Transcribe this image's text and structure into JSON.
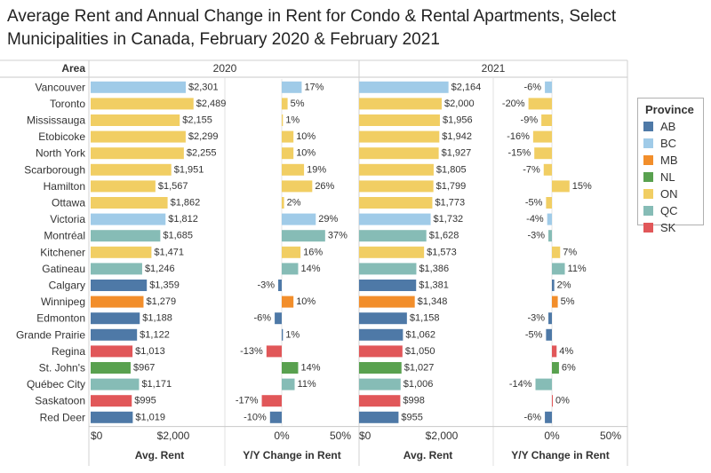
{
  "chart_data": {
    "type": "bar",
    "title": "Average Rent and Annual Change in Rent for Condo & Rental Apartments, Select Municipalities in Canada, February 2020 & February 2021",
    "row_header": "Area",
    "years": [
      "2020",
      "2021"
    ],
    "measures": [
      "Avg. Rent",
      "Y/Y Change in Rent"
    ],
    "rent_axis": {
      "range": [
        0,
        2600
      ],
      "ticks": [
        0,
        2000
      ],
      "tick_labels": [
        "$0",
        "$2,000"
      ]
    },
    "change_axis": {
      "range": [
        -30,
        50
      ],
      "ticks": [
        0,
        50
      ],
      "tick_labels": [
        "0%",
        "50%"
      ]
    },
    "legend": {
      "title": "Province",
      "items": [
        {
          "code": "AB",
          "color": "#4e79a7"
        },
        {
          "code": "BC",
          "color": "#a0cbe8"
        },
        {
          "code": "MB",
          "color": "#f28e2b"
        },
        {
          "code": "NL",
          "color": "#59a14f"
        },
        {
          "code": "ON",
          "color": "#f1ce63"
        },
        {
          "code": "QC",
          "color": "#86bcb6"
        },
        {
          "code": "SK",
          "color": "#e15759"
        }
      ]
    },
    "rows": [
      {
        "area": "Vancouver",
        "province": "BC",
        "rent_2020": 2301,
        "rent_2020_label": "$2,301",
        "change_2020": 17,
        "change_2020_label": "17%",
        "rent_2021": 2164,
        "rent_2021_label": "$2,164",
        "change_2021": -6,
        "change_2021_label": "-6%"
      },
      {
        "area": "Toronto",
        "province": "ON",
        "rent_2020": 2489,
        "rent_2020_label": "$2,489",
        "change_2020": 5,
        "change_2020_label": "5%",
        "rent_2021": 2000,
        "rent_2021_label": "$2,000",
        "change_2021": -20,
        "change_2021_label": "-20%"
      },
      {
        "area": "Mississauga",
        "province": "ON",
        "rent_2020": 2155,
        "rent_2020_label": "$2,155",
        "change_2020": 1,
        "change_2020_label": "1%",
        "rent_2021": 1956,
        "rent_2021_label": "$1,956",
        "change_2021": -9,
        "change_2021_label": "-9%"
      },
      {
        "area": "Etobicoke",
        "province": "ON",
        "rent_2020": 2299,
        "rent_2020_label": "$2,299",
        "change_2020": 10,
        "change_2020_label": "10%",
        "rent_2021": 1942,
        "rent_2021_label": "$1,942",
        "change_2021": -16,
        "change_2021_label": "-16%"
      },
      {
        "area": "North York",
        "province": "ON",
        "rent_2020": 2255,
        "rent_2020_label": "$2,255",
        "change_2020": 10,
        "change_2020_label": "10%",
        "rent_2021": 1927,
        "rent_2021_label": "$1,927",
        "change_2021": -15,
        "change_2021_label": "-15%"
      },
      {
        "area": "Scarborough",
        "province": "ON",
        "rent_2020": 1951,
        "rent_2020_label": "$1,951",
        "change_2020": 19,
        "change_2020_label": "19%",
        "rent_2021": 1805,
        "rent_2021_label": "$1,805",
        "change_2021": -7,
        "change_2021_label": "-7%"
      },
      {
        "area": "Hamilton",
        "province": "ON",
        "rent_2020": 1567,
        "rent_2020_label": "$1,567",
        "change_2020": 26,
        "change_2020_label": "26%",
        "rent_2021": 1799,
        "rent_2021_label": "$1,799",
        "change_2021": 15,
        "change_2021_label": "15%"
      },
      {
        "area": "Ottawa",
        "province": "ON",
        "rent_2020": 1862,
        "rent_2020_label": "$1,862",
        "change_2020": 2,
        "change_2020_label": "2%",
        "rent_2021": 1773,
        "rent_2021_label": "$1,773",
        "change_2021": -5,
        "change_2021_label": "-5%"
      },
      {
        "area": "Victoria",
        "province": "BC",
        "rent_2020": 1812,
        "rent_2020_label": "$1,812",
        "change_2020": 29,
        "change_2020_label": "29%",
        "rent_2021": 1732,
        "rent_2021_label": "$1,732",
        "change_2021": -4,
        "change_2021_label": "-4%"
      },
      {
        "area": "Montréal",
        "province": "QC",
        "rent_2020": 1685,
        "rent_2020_label": "$1,685",
        "change_2020": 37,
        "change_2020_label": "37%",
        "rent_2021": 1628,
        "rent_2021_label": "$1,628",
        "change_2021": -3,
        "change_2021_label": "-3%"
      },
      {
        "area": "Kitchener",
        "province": "ON",
        "rent_2020": 1471,
        "rent_2020_label": "$1,471",
        "change_2020": 16,
        "change_2020_label": "16%",
        "rent_2021": 1573,
        "rent_2021_label": "$1,573",
        "change_2021": 7,
        "change_2021_label": "7%"
      },
      {
        "area": "Gatineau",
        "province": "QC",
        "rent_2020": 1246,
        "rent_2020_label": "$1,246",
        "change_2020": 14,
        "change_2020_label": "14%",
        "rent_2021": 1386,
        "rent_2021_label": "$1,386",
        "change_2021": 11,
        "change_2021_label": "11%"
      },
      {
        "area": "Calgary",
        "province": "AB",
        "rent_2020": 1359,
        "rent_2020_label": "$1,359",
        "change_2020": -3,
        "change_2020_label": "-3%",
        "rent_2021": 1381,
        "rent_2021_label": "$1,381",
        "change_2021": 2,
        "change_2021_label": "2%"
      },
      {
        "area": "Winnipeg",
        "province": "MB",
        "rent_2020": 1279,
        "rent_2020_label": "$1,279",
        "change_2020": 10,
        "change_2020_label": "10%",
        "rent_2021": 1348,
        "rent_2021_label": "$1,348",
        "change_2021": 5,
        "change_2021_label": "5%"
      },
      {
        "area": "Edmonton",
        "province": "AB",
        "rent_2020": 1188,
        "rent_2020_label": "$1,188",
        "change_2020": -6,
        "change_2020_label": "-6%",
        "rent_2021": 1158,
        "rent_2021_label": "$1,158",
        "change_2021": -3,
        "change_2021_label": "-3%"
      },
      {
        "area": "Grande Prairie",
        "province": "AB",
        "rent_2020": 1122,
        "rent_2020_label": "$1,122",
        "change_2020": 1,
        "change_2020_label": "1%",
        "rent_2021": 1062,
        "rent_2021_label": "$1,062",
        "change_2021": -5,
        "change_2021_label": "-5%"
      },
      {
        "area": "Regina",
        "province": "SK",
        "rent_2020": 1013,
        "rent_2020_label": "$1,013",
        "change_2020": -13,
        "change_2020_label": "-13%",
        "rent_2021": 1050,
        "rent_2021_label": "$1,050",
        "change_2021": 4,
        "change_2021_label": "4%"
      },
      {
        "area": "St. John's",
        "province": "NL",
        "rent_2020": 967,
        "rent_2020_label": "$967",
        "change_2020": 14,
        "change_2020_label": "14%",
        "rent_2021": 1027,
        "rent_2021_label": "$1,027",
        "change_2021": 6,
        "change_2021_label": "6%"
      },
      {
        "area": "Québec City",
        "province": "QC",
        "rent_2020": 1171,
        "rent_2020_label": "$1,171",
        "change_2020": 11,
        "change_2020_label": "11%",
        "rent_2021": 1006,
        "rent_2021_label": "$1,006",
        "change_2021": -14,
        "change_2021_label": "-14%"
      },
      {
        "area": "Saskatoon",
        "province": "SK",
        "rent_2020": 995,
        "rent_2020_label": "$995",
        "change_2020": -17,
        "change_2020_label": "-17%",
        "rent_2021": 998,
        "rent_2021_label": "$998",
        "change_2021": 0,
        "change_2021_label": "0%"
      },
      {
        "area": "Red Deer",
        "province": "AB",
        "rent_2020": 1019,
        "rent_2020_label": "$1,019",
        "change_2020": -10,
        "change_2020_label": "-10%",
        "rent_2021": 955,
        "rent_2021_label": "$955",
        "change_2021": -6,
        "change_2021_label": "-6%"
      }
    ]
  }
}
